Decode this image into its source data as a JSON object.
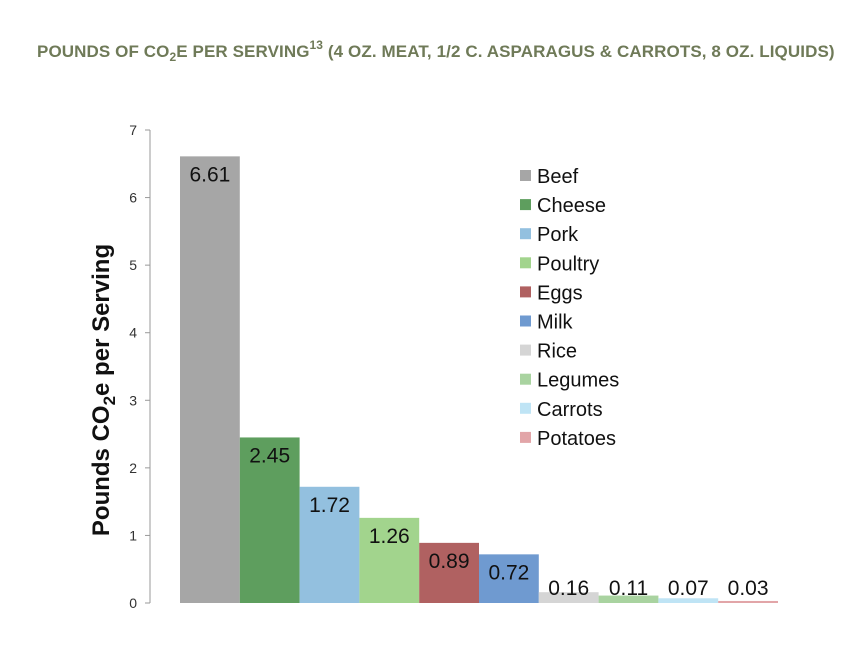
{
  "title": {
    "part1": "POUNDS OF CO",
    "sub": "2",
    "part2": "E PER SERVING",
    "sup": "13",
    "part3": " (4 OZ. MEAT, 1/2 C. ASPARAGUS & CARROTS, 8 OZ. LIQUIDS)"
  },
  "chart_data": {
    "type": "bar",
    "categories": [
      "Beef",
      "Cheese",
      "Pork",
      "Poultry",
      "Eggs",
      "Milk",
      "Rice",
      "Legumes",
      "Carrots",
      "Potatoes"
    ],
    "values": [
      6.61,
      2.45,
      1.72,
      1.26,
      0.89,
      0.72,
      0.16,
      0.11,
      0.07,
      0.03
    ],
    "data_labels": [
      "6.61",
      "2.45",
      "1.72",
      "1.26",
      "0.89",
      "0.72",
      "0.16",
      "0.11",
      "0.07",
      "0.03"
    ],
    "colors": [
      "#a6a6a6",
      "#5e9e5e",
      "#93c0df",
      "#a2d48d",
      "#b06161",
      "#6f9ad0",
      "#d5d5d5",
      "#a9d3a0",
      "#bfe4f5",
      "#e2a5a8"
    ],
    "ylabel": {
      "part1": "Pounds CO",
      "sub": "2",
      "part2": "e per Serving"
    },
    "ylim": [
      0,
      7
    ],
    "yticks": [
      0,
      1,
      2,
      3,
      4,
      5,
      6,
      7
    ],
    "legend_position": "top-right",
    "grid": false
  }
}
